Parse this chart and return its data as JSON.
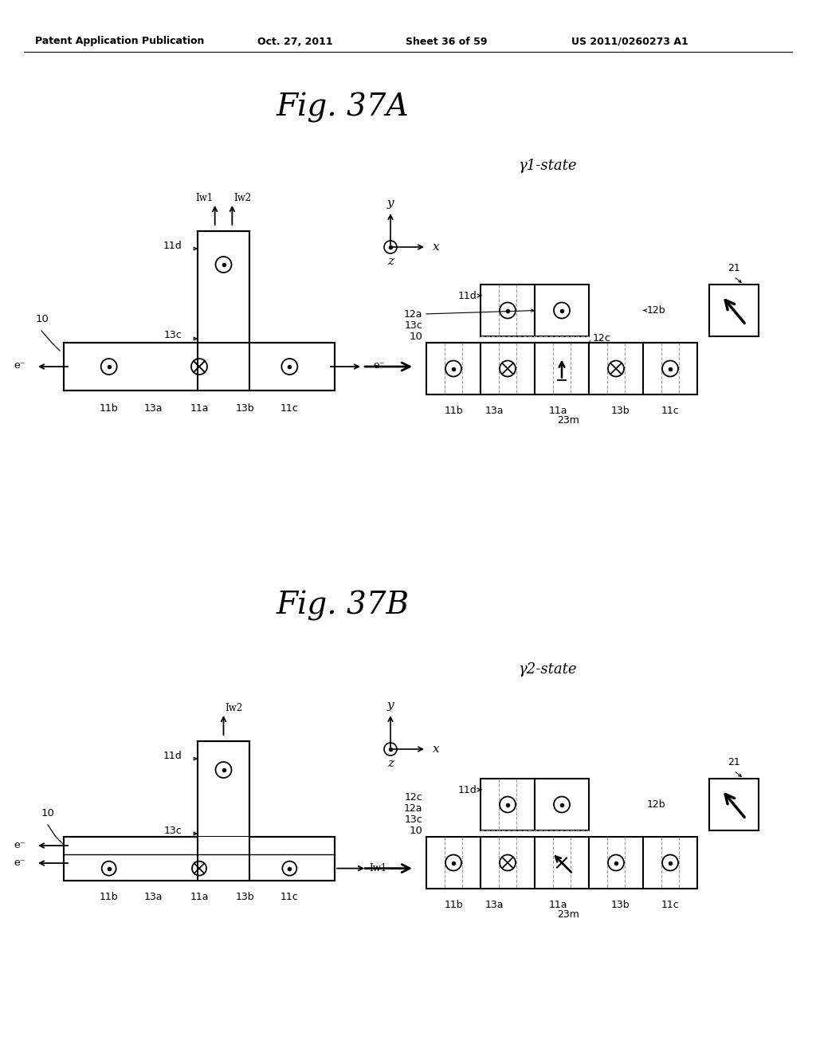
{
  "title_top": "Patent Application Publication",
  "title_date": "Oct. 27, 2011",
  "title_sheet": "Sheet 36 of 59",
  "title_patent": "US 2011/0260273 A1",
  "fig_37A_title": "Fig. 37A",
  "fig_37B_title": "Fig. 37B",
  "gamma1_state": "γ1-state",
  "gamma2_state": "γ2-state",
  "bg_color": "#ffffff"
}
